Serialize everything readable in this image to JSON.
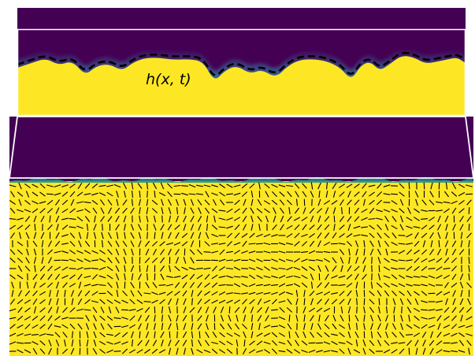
{
  "figure": {
    "label": "h(x, t)",
    "colors": {
      "ordered": "#fde725",
      "disordered": "#440154",
      "interface_mid": "#21918c",
      "interface_light": "#5ec962",
      "frame": "#ffffff",
      "contour": "#000000",
      "director": "#000000"
    }
  }
}
